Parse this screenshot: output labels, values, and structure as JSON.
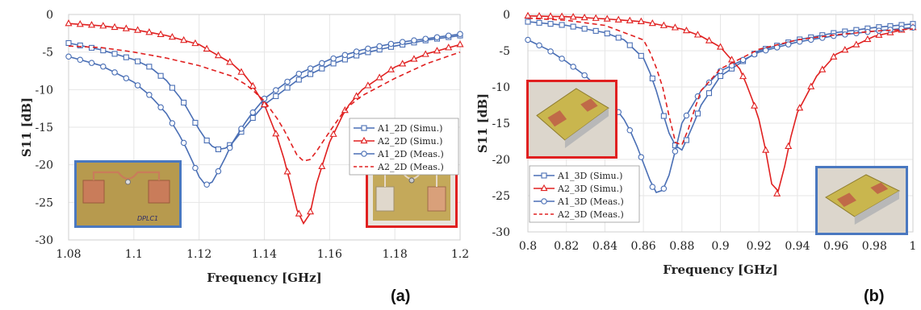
{
  "chart_data": [
    {
      "type": "line",
      "panel_label": "(a)",
      "xlabel": "Frequency [GHz]",
      "ylabel": "S11 [dB]",
      "xlim": [
        1.08,
        1.2
      ],
      "ylim": [
        -30,
        0
      ],
      "xticks": [
        "1.08",
        "1.1",
        "1.12",
        "1.14",
        "1.16",
        "1.18",
        "1.2"
      ],
      "yticks": [
        "0",
        "-5",
        "-10",
        "-15",
        "-20",
        "-25",
        "-30"
      ],
      "grid": true,
      "legend_position": "center-right",
      "photos": [
        {
          "description": "planar antenna photo",
          "border": "#4a78c0",
          "text_in_photo": "DPLC1"
        },
        {
          "description": "planar antenna photo",
          "border": "#e02020"
        }
      ],
      "series": [
        {
          "name": "A1_2D (Simu.)",
          "color": "#4a6fb5",
          "style": "solid",
          "marker": "square",
          "x": [
            1.08,
            1.09,
            1.1,
            1.105,
            1.11,
            1.115,
            1.12,
            1.122,
            1.125,
            1.128,
            1.13,
            1.135,
            1.14,
            1.15,
            1.16,
            1.17,
            1.18,
            1.19,
            1.2
          ],
          "y": [
            -3.8,
            -4.7,
            -6.0,
            -7.0,
            -8.8,
            -11.5,
            -15.3,
            -16.6,
            -18.0,
            -17.8,
            -17.2,
            -14.5,
            -12.0,
            -8.8,
            -6.7,
            -5.2,
            -4.2,
            -3.4,
            -2.8
          ]
        },
        {
          "name": "A2_2D (Simu.)",
          "color": "#e02020",
          "style": "solid",
          "marker": "triangle",
          "x": [
            1.08,
            1.09,
            1.1,
            1.11,
            1.12,
            1.13,
            1.135,
            1.14,
            1.145,
            1.148,
            1.15,
            1.152,
            1.154,
            1.156,
            1.16,
            1.165,
            1.17,
            1.18,
            1.19,
            1.2
          ],
          "y": [
            -1.2,
            -1.5,
            -2.0,
            -2.8,
            -4.0,
            -6.5,
            -8.5,
            -12.0,
            -17.5,
            -22.5,
            -26.0,
            -27.8,
            -26.5,
            -22.5,
            -17.0,
            -12.5,
            -10.0,
            -7.0,
            -5.2,
            -4.0
          ]
        },
        {
          "name": "A1_2D (Meas.)",
          "color": "#4a6fb5",
          "style": "solid",
          "marker": "circle",
          "x": [
            1.08,
            1.09,
            1.1,
            1.105,
            1.11,
            1.115,
            1.118,
            1.12,
            1.122,
            1.124,
            1.127,
            1.13,
            1.135,
            1.14,
            1.15,
            1.16,
            1.17,
            1.18,
            1.19,
            1.2
          ],
          "y": [
            -5.6,
            -6.8,
            -9.0,
            -10.8,
            -13.2,
            -16.8,
            -19.6,
            -21.6,
            -22.7,
            -22.3,
            -20.0,
            -17.2,
            -13.8,
            -11.2,
            -8.0,
            -6.0,
            -4.7,
            -3.8,
            -3.2,
            -2.6
          ]
        },
        {
          "name": "A2_2D (Meas.)",
          "color": "#e02020",
          "style": "dashed",
          "marker": "none",
          "x": [
            1.08,
            1.09,
            1.1,
            1.11,
            1.12,
            1.13,
            1.135,
            1.14,
            1.145,
            1.148,
            1.15,
            1.152,
            1.154,
            1.156,
            1.16,
            1.165,
            1.17,
            1.18,
            1.19,
            1.2
          ],
          "y": [
            -4.2,
            -4.4,
            -5.0,
            -5.8,
            -6.8,
            -8.2,
            -9.5,
            -11.5,
            -14.5,
            -17.0,
            -18.7,
            -19.5,
            -19.3,
            -18.2,
            -15.6,
            -12.5,
            -10.8,
            -8.5,
            -6.5,
            -5.0
          ]
        }
      ]
    },
    {
      "type": "line",
      "panel_label": "(b)",
      "xlabel": "Frequency [GHz]",
      "ylabel": "S11 [dB]",
      "xlim": [
        0.8,
        1.0
      ],
      "ylim": [
        -30,
        0
      ],
      "xticks": [
        "0.8",
        "0.82",
        "0.84",
        "0.86",
        "0.88",
        "0.9",
        "0.92",
        "0.94",
        "0.96",
        "0.98",
        "1"
      ],
      "yticks": [
        "0",
        "-5",
        "-10",
        "-15",
        "-20",
        "-25",
        "-30"
      ],
      "grid": true,
      "legend_position": "bottom-left",
      "photos": [
        {
          "description": "3D antenna photo",
          "border": "#e02020"
        },
        {
          "description": "3D antenna photo",
          "border": "#4a78c0"
        }
      ],
      "series": [
        {
          "name": "A1_3D (Simu.)",
          "color": "#4a6fb5",
          "style": "solid",
          "marker": "square",
          "x": [
            0.8,
            0.82,
            0.84,
            0.85,
            0.86,
            0.865,
            0.87,
            0.875,
            0.88,
            0.885,
            0.89,
            0.9,
            0.92,
            0.94,
            0.96,
            0.98,
            1.0
          ],
          "y": [
            -1.0,
            -1.5,
            -2.5,
            -3.5,
            -6.0,
            -9.0,
            -13.5,
            -17.8,
            -18.7,
            -15.8,
            -12.5,
            -8.5,
            -5.0,
            -3.5,
            -2.5,
            -1.8,
            -1.3
          ]
        },
        {
          "name": "A2_3D (Simu.)",
          "color": "#e02020",
          "style": "solid",
          "marker": "triangle",
          "x": [
            0.8,
            0.82,
            0.84,
            0.86,
            0.88,
            0.89,
            0.9,
            0.91,
            0.915,
            0.92,
            0.925,
            0.928,
            0.932,
            0.935,
            0.94,
            0.95,
            0.96,
            0.98,
            1.0
          ],
          "y": [
            -0.2,
            -0.3,
            -0.6,
            -1.0,
            -2.0,
            -3.0,
            -4.5,
            -7.5,
            -10.5,
            -14.5,
            -20.5,
            -25.7,
            -23.0,
            -18.5,
            -13.5,
            -8.5,
            -5.5,
            -3.0,
            -1.8
          ]
        },
        {
          "name": "A1_3D (Meas.)",
          "color": "#4a6fb5",
          "style": "solid",
          "marker": "circle",
          "x": [
            0.8,
            0.81,
            0.82,
            0.83,
            0.84,
            0.85,
            0.855,
            0.86,
            0.865,
            0.868,
            0.872,
            0.875,
            0.88,
            0.89,
            0.9,
            0.92,
            0.94,
            0.96,
            0.98,
            1.0
          ],
          "y": [
            -3.5,
            -4.8,
            -6.5,
            -8.5,
            -11.0,
            -14.5,
            -17.0,
            -20.5,
            -24.0,
            -25.0,
            -23.5,
            -20.5,
            -15.0,
            -10.5,
            -7.8,
            -5.2,
            -3.8,
            -2.9,
            -2.3,
            -1.8
          ]
        },
        {
          "name": "A2_3D (Meas.)",
          "color": "#e02020",
          "style": "dashed",
          "marker": "none",
          "x": [
            0.8,
            0.82,
            0.84,
            0.86,
            0.865,
            0.87,
            0.875,
            0.878,
            0.882,
            0.886,
            0.89,
            0.9,
            0.92,
            0.94,
            0.96,
            0.98,
            1.0
          ],
          "y": [
            -0.5,
            -0.8,
            -1.5,
            -3.5,
            -6.0,
            -10.0,
            -16.0,
            -19.0,
            -17.0,
            -13.5,
            -10.5,
            -7.5,
            -4.8,
            -3.5,
            -2.8,
            -2.3,
            -2.0
          ]
        }
      ]
    }
  ]
}
